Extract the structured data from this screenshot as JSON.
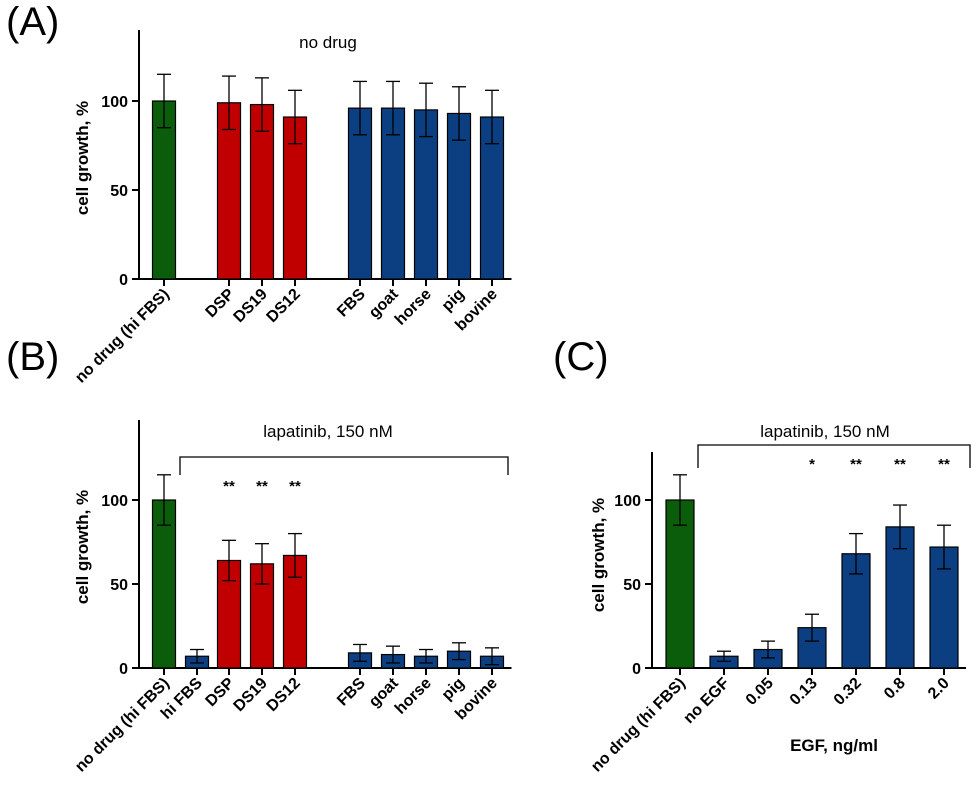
{
  "colors": {
    "control": "#0b5d0b",
    "hpl": "#c00000",
    "serum": "#0b3f82"
  },
  "chart_data": [
    {
      "type": "bar",
      "panel_label": "(A)",
      "title": "no drug",
      "ylabel": "cell growth, %",
      "xlabel": "",
      "ylim": [
        0,
        140
      ],
      "yticks": [
        "0",
        "50",
        "100"
      ],
      "yticks_values": [
        0,
        50,
        100
      ],
      "categories": [
        "no drug (hi FBS)",
        "DSP",
        "DS19",
        "DS12",
        "FBS",
        "goat",
        "horse",
        "pig",
        "bovine"
      ],
      "groups": [
        "control",
        "hpl",
        "hpl",
        "hpl",
        "serum",
        "serum",
        "serum",
        "serum",
        "serum"
      ],
      "values": [
        100,
        99,
        98,
        91,
        96,
        96,
        95,
        93,
        91
      ],
      "errors": [
        15,
        15,
        15,
        15,
        15,
        15,
        15,
        15,
        15
      ],
      "significance": [
        "",
        "",
        "",
        "",
        "",
        "",
        "",
        "",
        ""
      ]
    },
    {
      "type": "bar",
      "panel_label": "(B)",
      "title": "lapatinib, 150 nM",
      "ylabel": "cell growth, %",
      "xlabel": "",
      "ylim": [
        0,
        140
      ],
      "yticks": [
        "0",
        "50",
        "100"
      ],
      "yticks_values": [
        0,
        50,
        100
      ],
      "categories": [
        "no drug (hi FBS)",
        "hi FBS",
        "DSP",
        "DS19",
        "DS12",
        "FBS",
        "goat",
        "horse",
        "pig",
        "bovine"
      ],
      "groups": [
        "control",
        "serum",
        "hpl",
        "hpl",
        "hpl",
        "serum",
        "serum",
        "serum",
        "serum",
        "serum"
      ],
      "values": [
        100,
        7,
        64,
        62,
        67,
        9,
        8,
        7,
        10,
        7
      ],
      "errors": [
        15,
        4,
        12,
        12,
        13,
        5,
        5,
        4,
        5,
        5
      ],
      "significance": [
        "",
        "",
        "**",
        "**",
        "**",
        "",
        "",
        "",
        "",
        ""
      ]
    },
    {
      "type": "bar",
      "panel_label": "(C)",
      "title": "lapatinib, 150 nM",
      "ylabel": "cell growth, %",
      "xlabel": "EGF, ng/ml",
      "ylim": [
        0,
        120
      ],
      "yticks": [
        "0",
        "50",
        "100"
      ],
      "yticks_values": [
        0,
        50,
        100
      ],
      "categories": [
        "no drug (hi FBS)",
        "no EGF",
        "0.05",
        "0.13",
        "0.32",
        "0.8",
        "2.0"
      ],
      "groups": [
        "control",
        "serum",
        "serum",
        "serum",
        "serum",
        "serum",
        "serum"
      ],
      "values": [
        100,
        7,
        11,
        24,
        68,
        84,
        72
      ],
      "errors": [
        15,
        3,
        5,
        8,
        12,
        13,
        13
      ],
      "significance": [
        "",
        "",
        "",
        "*",
        "**",
        "**",
        "**"
      ]
    }
  ]
}
